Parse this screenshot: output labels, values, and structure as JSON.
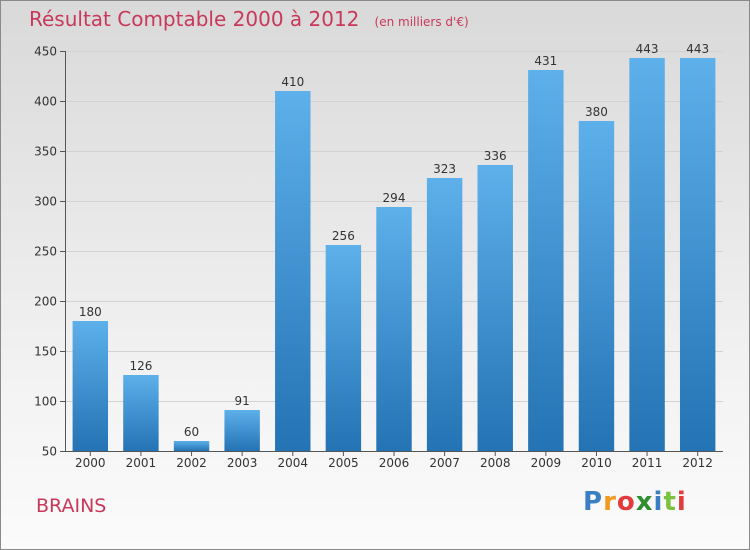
{
  "title": "Résultat Comptable 2000 à 2012",
  "subtitle": "(en milliers d'€)",
  "place": "BRAINS",
  "logo": {
    "text": "Proxiti",
    "letters": [
      "P",
      "r",
      "o",
      "x",
      "i",
      "t",
      "i"
    ],
    "colors": [
      "#3a7fc4",
      "#f29a1f",
      "#e23b3b",
      "#2f8f2f",
      "#3a7fc4",
      "#7cc242",
      "#e23b3b"
    ]
  },
  "colors": {
    "bar_top": "#5db0ea",
    "bar_bottom": "#2473b4",
    "accent": "#c8385a"
  },
  "chart_data": {
    "type": "bar",
    "title": "Résultat Comptable 2000 à 2012",
    "xlabel": "",
    "ylabel": "",
    "ylim": [
      50,
      450
    ],
    "yticks": [
      50,
      100,
      150,
      200,
      250,
      300,
      350,
      400,
      450
    ],
    "grid": true,
    "categories": [
      "2000",
      "2001",
      "2002",
      "2003",
      "2004",
      "2005",
      "2006",
      "2007",
      "2008",
      "2009",
      "2010",
      "2011",
      "2012"
    ],
    "values": [
      180,
      126,
      60,
      91,
      410,
      256,
      294,
      323,
      336,
      431,
      380,
      443,
      443
    ]
  }
}
